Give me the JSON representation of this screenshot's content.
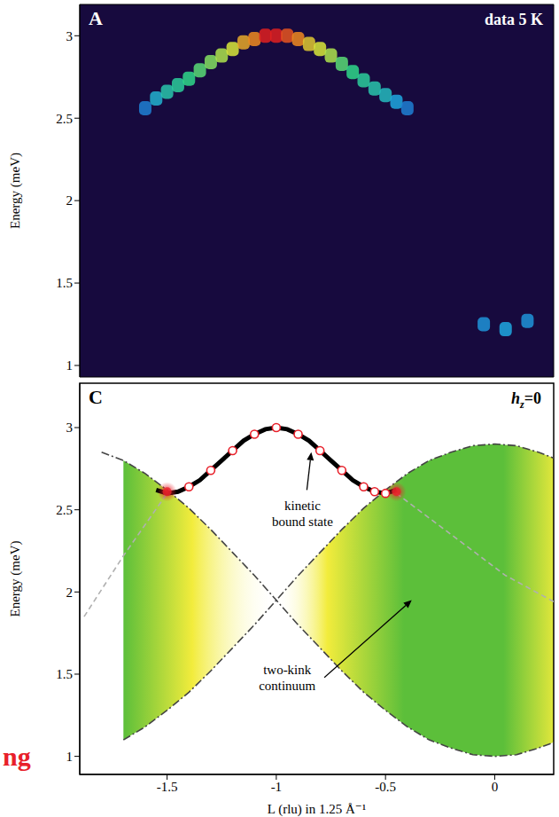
{
  "chart_data": [
    {
      "type": "scatter",
      "panel_label": "A",
      "annotation": "data 5 K",
      "ylabel": "Energy (meV)",
      "xlim": [
        -1.9,
        0.27
      ],
      "ylim": [
        0.93,
        3.19
      ],
      "yticks": [
        1,
        1.5,
        2,
        2.5,
        3
      ],
      "tick_labels": "y",
      "x": [
        -1.6,
        -1.55,
        -1.5,
        -1.45,
        -1.4,
        -1.35,
        -1.3,
        -1.25,
        -1.2,
        -1.15,
        -1.1,
        -1.05,
        -1.0,
        -0.95,
        -0.9,
        -0.85,
        -0.8,
        -0.75,
        -0.7,
        -0.65,
        -0.6,
        -0.55,
        -0.5,
        -0.45,
        -0.4,
        -0.05,
        0.05,
        0.15
      ],
      "values": [
        2.56,
        2.62,
        2.66,
        2.7,
        2.74,
        2.79,
        2.84,
        2.88,
        2.92,
        2.96,
        2.98,
        3.0,
        3.0,
        3.0,
        2.98,
        2.95,
        2.92,
        2.88,
        2.83,
        2.78,
        2.73,
        2.68,
        2.64,
        2.6,
        2.56,
        1.25,
        1.22,
        1.27
      ],
      "intensity": [
        0.2,
        0.35,
        0.45,
        0.5,
        0.55,
        0.6,
        0.65,
        0.7,
        0.75,
        0.85,
        0.9,
        1.0,
        1.0,
        0.95,
        0.9,
        0.8,
        0.75,
        0.7,
        0.6,
        0.55,
        0.5,
        0.45,
        0.4,
        0.3,
        0.2,
        0.25,
        0.3,
        0.25
      ]
    },
    {
      "type": "line",
      "panel_label": "C",
      "annotation": "hz=0",
      "ylabel": "Energy (meV)",
      "xlabel": "L (rlu) in 1.25 Å⁻¹",
      "xlim": [
        -1.9,
        0.27
      ],
      "ylim": [
        0.89,
        3.27
      ],
      "xticks": [
        -1.5,
        -1,
        -0.5,
        0
      ],
      "yticks": [
        1,
        1.5,
        2,
        2.5,
        3
      ],
      "regions": [
        {
          "x": [
            -1.7,
            -1.6,
            -1.5,
            -1.4,
            -1.3,
            -1.2,
            -1.1,
            -1.0
          ],
          "low": [
            1.1,
            1.18,
            1.28,
            1.39,
            1.52,
            1.66,
            1.8,
            1.95
          ],
          "high": [
            2.8,
            2.72,
            2.62,
            2.51,
            2.38,
            2.24,
            2.1,
            1.95
          ],
          "color": "#5cbf3a"
        },
        {
          "x": [
            -1.0,
            -0.9,
            -0.8,
            -0.7,
            -0.6,
            -0.5,
            -0.4,
            -0.3,
            -0.2,
            -0.1,
            0.0,
            0.1,
            0.2,
            0.3
          ],
          "low": [
            1.95,
            1.8,
            1.66,
            1.52,
            1.39,
            1.28,
            1.18,
            1.1,
            1.05,
            1.01,
            1.0,
            1.01,
            1.05,
            1.1
          ],
          "high": [
            1.95,
            2.1,
            2.24,
            2.38,
            2.51,
            2.62,
            2.72,
            2.8,
            2.85,
            2.89,
            2.9,
            2.89,
            2.85,
            2.8
          ],
          "color": "#5cbf3a"
        }
      ],
      "series": [
        {
          "type": "line",
          "x": [
            -1.8,
            -1.7,
            -1.6,
            -1.5,
            -1.4,
            -1.3,
            -1.2,
            -1.1,
            -1.0,
            -0.9,
            -0.8,
            -0.7,
            -0.6,
            -0.5,
            -0.4,
            -0.3,
            -0.2,
            -0.1,
            0.0,
            0.1,
            0.2,
            0.3
          ],
          "values": [
            2.85,
            2.8,
            2.72,
            2.62,
            2.51,
            2.38,
            2.24,
            2.1,
            1.95,
            1.8,
            1.66,
            1.52,
            1.39,
            1.28,
            1.18,
            1.1,
            1.05,
            1.01,
            1.0,
            1.01,
            1.05,
            1.1
          ],
          "color": "#444444",
          "line_style": "dashdot"
        },
        {
          "type": "line",
          "x": [
            -1.7,
            -1.6,
            -1.5,
            -1.4,
            -1.3,
            -1.2,
            -1.1,
            -1.0,
            -0.9,
            -0.8,
            -0.7,
            -0.6,
            -0.5,
            -0.4,
            -0.3,
            -0.2,
            -0.1,
            0.0,
            0.1,
            0.2,
            0.3
          ],
          "values": [
            1.1,
            1.18,
            1.28,
            1.39,
            1.52,
            1.66,
            1.8,
            1.95,
            2.1,
            2.24,
            2.38,
            2.51,
            2.62,
            2.72,
            2.8,
            2.85,
            2.89,
            2.9,
            2.89,
            2.85,
            2.8
          ],
          "color": "#444444",
          "line_style": "dashdot"
        },
        {
          "type": "line",
          "x": [
            -1.88,
            -1.7,
            -1.5
          ],
          "values": [
            1.85,
            2.22,
            2.6
          ],
          "color": "#b0b0b0",
          "line_style": "dashed"
        },
        {
          "type": "line",
          "x": [
            -0.45,
            -0.2,
            0.05,
            0.3
          ],
          "values": [
            2.6,
            2.35,
            2.1,
            1.92
          ],
          "color": "#b0b0b0",
          "line_style": "dashed"
        },
        {
          "type": "line",
          "x": [
            -1.55,
            -1.5,
            -1.45,
            -1.4,
            -1.35,
            -1.3,
            -1.25,
            -1.2,
            -1.15,
            -1.1,
            -1.05,
            -1.0,
            -0.95,
            -0.9,
            -0.85,
            -0.8,
            -0.75,
            -0.7,
            -0.65,
            -0.6,
            -0.55,
            -0.5,
            -0.45
          ],
          "values": [
            2.62,
            2.6,
            2.61,
            2.64,
            2.68,
            2.74,
            2.8,
            2.86,
            2.92,
            2.96,
            2.99,
            3.0,
            2.99,
            2.96,
            2.92,
            2.86,
            2.8,
            2.74,
            2.68,
            2.64,
            2.61,
            2.6,
            2.62
          ],
          "color": "#000000",
          "line_style": "solid"
        },
        {
          "type": "scatter",
          "x": [
            -1.4,
            -1.3,
            -1.2,
            -1.1,
            -1.0,
            -0.9,
            -0.8,
            -0.7,
            -0.6,
            -0.55,
            -0.5
          ],
          "values": [
            2.64,
            2.74,
            2.86,
            2.96,
            3.0,
            2.96,
            2.86,
            2.74,
            2.64,
            2.61,
            2.6
          ],
          "color": "#e8202a",
          "marker": "open_circle"
        },
        {
          "type": "scatter",
          "x": [
            -1.5,
            -0.45
          ],
          "values": [
            2.61,
            2.61
          ],
          "color": "#e8202a",
          "marker": "glow"
        }
      ],
      "annotations": [
        {
          "text": "kinetic bound state"
        },
        {
          "text": "two-kink continuum"
        }
      ]
    }
  ],
  "cropped_text": {
    "text": "ng",
    "color": "#e8202a"
  }
}
